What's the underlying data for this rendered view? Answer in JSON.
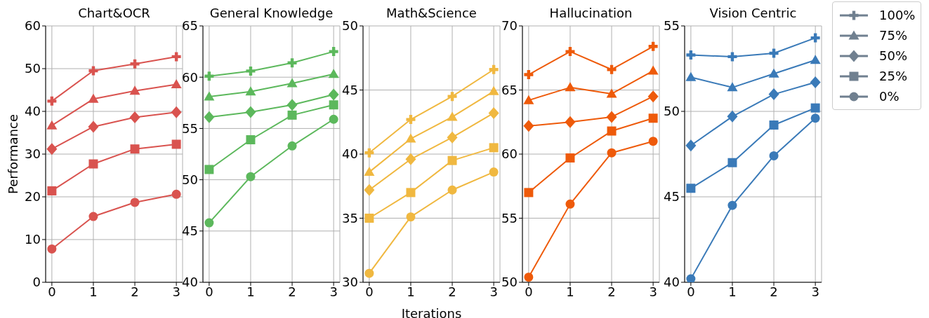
{
  "chart_data": [
    {
      "type": "line",
      "title": "Chart&OCR",
      "ylabel": "Performance",
      "x": [
        0,
        1,
        2,
        3
      ],
      "xlim": [
        -0.15,
        3.15
      ],
      "xticks": [
        0,
        1,
        2,
        3
      ],
      "ylim": [
        0,
        60
      ],
      "yticks": [
        0,
        10,
        20,
        30,
        40,
        50,
        60
      ],
      "grid": true,
      "series": [
        {
          "color": "#d9534f",
          "marker": "cross",
          "values": [
            42.4,
            49.5,
            51.1,
            52.8
          ]
        },
        {
          "color": "#d9534f",
          "marker": "triangle",
          "values": [
            36.7,
            42.9,
            44.8,
            46.3
          ]
        },
        {
          "color": "#d9534f",
          "marker": "diamond",
          "values": [
            31.2,
            36.4,
            38.6,
            39.8
          ]
        },
        {
          "color": "#d9534f",
          "marker": "square",
          "values": [
            21.4,
            27.7,
            31.2,
            32.3
          ]
        },
        {
          "color": "#d9534f",
          "marker": "circle",
          "values": [
            7.8,
            15.4,
            18.7,
            20.6
          ]
        }
      ]
    },
    {
      "type": "line",
      "title": "General Knowledge",
      "x": [
        0,
        1,
        2,
        3
      ],
      "xlim": [
        -0.15,
        3.15
      ],
      "xticks": [
        0,
        1,
        2,
        3
      ],
      "ylim": [
        40,
        65
      ],
      "yticks": [
        40,
        45,
        50,
        55,
        60,
        65
      ],
      "grid": true,
      "series": [
        {
          "color": "#5cb85c",
          "marker": "cross",
          "values": [
            60.1,
            60.6,
            61.4,
            62.5
          ]
        },
        {
          "color": "#5cb85c",
          "marker": "triangle",
          "values": [
            58.1,
            58.6,
            59.4,
            60.3
          ]
        },
        {
          "color": "#5cb85c",
          "marker": "diamond",
          "values": [
            56.1,
            56.6,
            57.3,
            58.3
          ]
        },
        {
          "color": "#5cb85c",
          "marker": "square",
          "values": [
            51.0,
            53.9,
            56.3,
            57.3
          ]
        },
        {
          "color": "#5cb85c",
          "marker": "circle",
          "values": [
            45.8,
            50.3,
            53.3,
            55.9
          ]
        }
      ]
    },
    {
      "type": "line",
      "title": "Math&Science",
      "xlabel": "Iterations",
      "x": [
        0,
        1,
        2,
        3
      ],
      "xlim": [
        -0.15,
        3.15
      ],
      "xticks": [
        0,
        1,
        2,
        3
      ],
      "ylim": [
        30,
        50
      ],
      "yticks": [
        30,
        35,
        40,
        45,
        50
      ],
      "grid": true,
      "series": [
        {
          "color": "#f0b840",
          "marker": "cross",
          "values": [
            40.1,
            42.7,
            44.5,
            46.6
          ]
        },
        {
          "color": "#f0b840",
          "marker": "triangle",
          "values": [
            38.6,
            41.2,
            42.9,
            44.9
          ]
        },
        {
          "color": "#f0b840",
          "marker": "diamond",
          "values": [
            37.2,
            39.6,
            41.3,
            43.2
          ]
        },
        {
          "color": "#f0b840",
          "marker": "square",
          "values": [
            35.0,
            37.0,
            39.5,
            40.5
          ]
        },
        {
          "color": "#f0b840",
          "marker": "circle",
          "values": [
            30.7,
            35.1,
            37.2,
            38.6
          ]
        }
      ]
    },
    {
      "type": "line",
      "title": "Hallucination",
      "x": [
        0,
        1,
        2,
        3
      ],
      "xlim": [
        -0.15,
        3.15
      ],
      "xticks": [
        0,
        1,
        2,
        3
      ],
      "ylim": [
        50,
        70
      ],
      "yticks": [
        50,
        55,
        60,
        65,
        70
      ],
      "grid": true,
      "series": [
        {
          "color": "#ee5a0a",
          "marker": "cross",
          "values": [
            66.2,
            68.0,
            66.6,
            68.4
          ]
        },
        {
          "color": "#ee5a0a",
          "marker": "triangle",
          "values": [
            64.2,
            65.2,
            64.7,
            66.5
          ]
        },
        {
          "color": "#ee5a0a",
          "marker": "diamond",
          "values": [
            62.2,
            62.5,
            62.9,
            64.5
          ]
        },
        {
          "color": "#ee5a0a",
          "marker": "square",
          "values": [
            57.0,
            59.7,
            61.8,
            62.8
          ]
        },
        {
          "color": "#ee5a0a",
          "marker": "circle",
          "values": [
            50.4,
            56.1,
            60.1,
            61.0
          ]
        }
      ]
    },
    {
      "type": "line",
      "title": "Vision Centric",
      "x": [
        0,
        1,
        2,
        3
      ],
      "xlim": [
        -0.15,
        3.15
      ],
      "xticks": [
        0,
        1,
        2,
        3
      ],
      "ylim": [
        40,
        55
      ],
      "yticks": [
        40,
        45,
        50,
        55
      ],
      "grid": true,
      "legend": "right",
      "series": [
        {
          "name": "100%",
          "color": "#3a7ab8",
          "marker": "cross",
          "values": [
            53.3,
            53.2,
            53.4,
            54.3
          ]
        },
        {
          "name": "75%",
          "color": "#3a7ab8",
          "marker": "triangle",
          "values": [
            52.0,
            51.4,
            52.2,
            53.0
          ]
        },
        {
          "name": "50%",
          "color": "#3a7ab8",
          "marker": "diamond",
          "values": [
            48.0,
            49.7,
            51.0,
            51.7
          ]
        },
        {
          "name": "25%",
          "color": "#3a7ab8",
          "marker": "square",
          "values": [
            45.5,
            47.0,
            49.2,
            50.2
          ]
        },
        {
          "name": "0%",
          "color": "#3a7ab8",
          "marker": "circle",
          "values": [
            40.2,
            44.5,
            47.4,
            49.6
          ]
        }
      ]
    }
  ]
}
